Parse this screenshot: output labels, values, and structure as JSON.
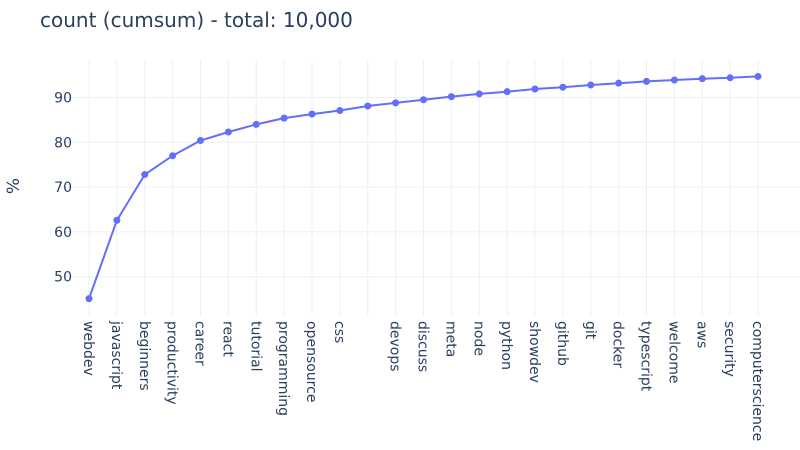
{
  "chart_data": {
    "type": "line",
    "title": "count (cumsum) - total: 10,000",
    "xlabel": "",
    "ylabel": "%",
    "ylim": [
      41.5,
      98.5
    ],
    "yticks": [
      50,
      60,
      70,
      80,
      90
    ],
    "grid": true,
    "legend": "none",
    "line_color": "#636efa",
    "categories": [
      "webdev",
      "javascript",
      "beginners",
      "productivity",
      "career",
      "react",
      "tutorial",
      "programming",
      "opensource",
      "css",
      "",
      "devops",
      "discuss",
      "meta",
      "node",
      "python",
      "showdev",
      "github",
      "git",
      "docker",
      "typescript",
      "welcome",
      "aws",
      "security",
      "computerscience"
    ],
    "values": [
      45.1,
      62.6,
      72.8,
      77.0,
      80.4,
      82.3,
      84.0,
      85.4,
      86.3,
      87.1,
      88.1,
      88.8,
      89.5,
      90.2,
      90.8,
      91.3,
      91.9,
      92.3,
      92.8,
      93.2,
      93.6,
      93.9,
      94.2,
      94.4,
      94.7
    ]
  },
  "header": {
    "title": "count (cumsum) - total: 10,000"
  },
  "colors": {
    "line": "#636efa",
    "text": "#2a3f5f",
    "grid": "#ebf0f8",
    "background": "#ffffff"
  }
}
